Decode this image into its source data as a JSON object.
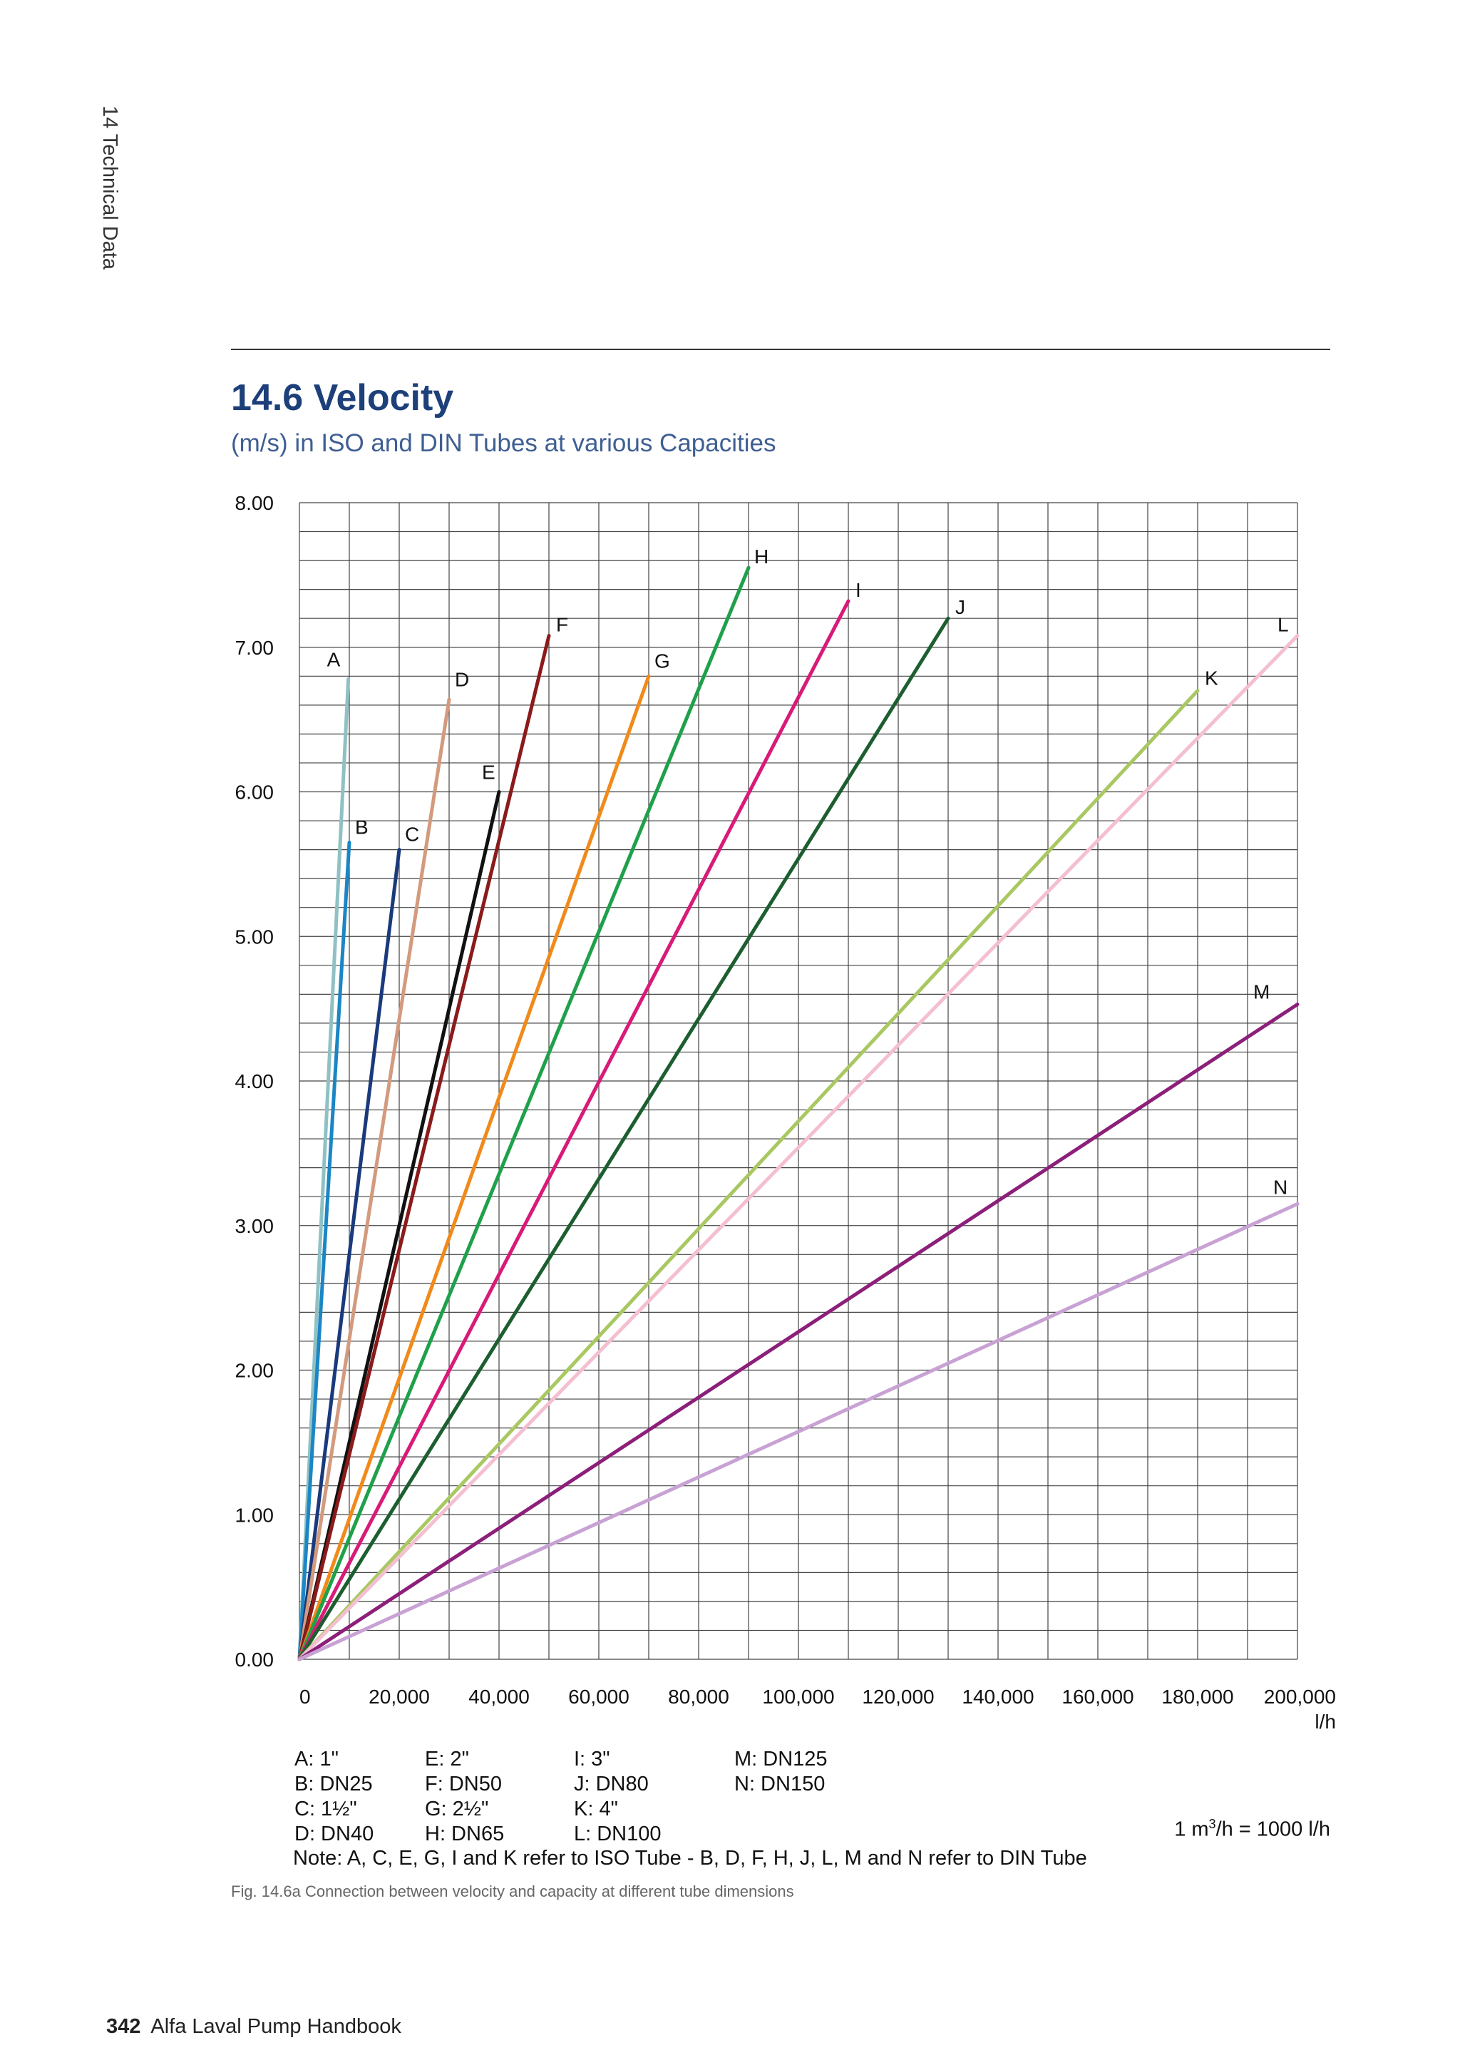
{
  "page": {
    "section_tab": "14 Technical Data",
    "title": "14.6 Velocity",
    "subtitle": "(m/s) in ISO and DIN Tubes at various Capacities",
    "legend_columns": [
      [
        "A: 1\"",
        "B: DN25",
        "C: 1½\"",
        "D: DN40"
      ],
      [
        "E: 2\"",
        "F: DN50",
        "G: 2½\"",
        "H: DN65"
      ],
      [
        "I: 3\"",
        "J: DN80",
        "K: 4\"",
        "L: DN100"
      ],
      [
        "M: DN125",
        "N: DN150"
      ]
    ],
    "conversion_prefix": "1 m",
    "conversion_sup": "3",
    "conversion_suffix": "/h = 1000 l/h",
    "note": "Note: A, C, E, G, I and K refer to ISO Tube - B, D, F, H, J, L, M and N refer to DIN Tube",
    "caption": "Fig. 14.6a Connection between velocity and capacity at different tube dimensions",
    "page_number": "342",
    "book_title": "Alfa Laval Pump Handbook"
  },
  "chart_data": {
    "type": "line",
    "title": "",
    "xlabel": "l/h",
    "ylabel": "",
    "xlim": [
      0,
      200000
    ],
    "ylim": [
      0,
      8
    ],
    "grid": true,
    "x_ticks": [
      0,
      20000,
      40000,
      60000,
      80000,
      100000,
      120000,
      140000,
      160000,
      180000,
      200000
    ],
    "x_tick_labels": [
      "0",
      "20,000",
      "40,000",
      "60,000",
      "80,000",
      "100,000",
      "120,000",
      "140,000",
      "160,000",
      "180,000",
      "200,000"
    ],
    "y_ticks": [
      0,
      1,
      2,
      3,
      4,
      5,
      6,
      7,
      8
    ],
    "y_tick_labels": [
      "0.00",
      "1.00",
      "2.00",
      "3.00",
      "4.00",
      "5.00",
      "6.00",
      "7.00",
      "8.00"
    ],
    "series": [
      {
        "name": "A",
        "color": "#8fc1c4",
        "points": [
          [
            0,
            0
          ],
          [
            9800,
            6.78
          ]
        ]
      },
      {
        "name": "B",
        "color": "#1b86c4",
        "points": [
          [
            0,
            0
          ],
          [
            10000,
            5.65
          ]
        ]
      },
      {
        "name": "C",
        "color": "#1a3a7c",
        "points": [
          [
            0,
            0
          ],
          [
            20000,
            5.6
          ]
        ]
      },
      {
        "name": "D",
        "color": "#d39a7e",
        "points": [
          [
            0,
            0
          ],
          [
            30000,
            6.64
          ]
        ]
      },
      {
        "name": "E",
        "color": "#111111",
        "points": [
          [
            0,
            0
          ],
          [
            40000,
            6.0
          ]
        ]
      },
      {
        "name": "F",
        "color": "#8b1a1a",
        "points": [
          [
            0,
            0
          ],
          [
            50000,
            7.08
          ]
        ]
      },
      {
        "name": "G",
        "color": "#f08a1a",
        "points": [
          [
            0,
            0
          ],
          [
            70000,
            6.8
          ]
        ]
      },
      {
        "name": "H",
        "color": "#1fa04a",
        "points": [
          [
            0,
            0
          ],
          [
            90000,
            7.55
          ]
        ]
      },
      {
        "name": "I",
        "color": "#d81a78",
        "points": [
          [
            0,
            0
          ],
          [
            110000,
            7.32
          ]
        ]
      },
      {
        "name": "J",
        "color": "#1d5e2f",
        "points": [
          [
            0,
            0
          ],
          [
            130000,
            7.2
          ]
        ]
      },
      {
        "name": "K",
        "color": "#a9c862",
        "points": [
          [
            0,
            0
          ],
          [
            180000,
            6.7
          ]
        ]
      },
      {
        "name": "L",
        "color": "#f4bfd0",
        "points": [
          [
            0,
            0
          ],
          [
            200000,
            7.08
          ]
        ]
      },
      {
        "name": "M",
        "color": "#8c1f7a",
        "points": [
          [
            0,
            0
          ],
          [
            200000,
            4.53
          ]
        ]
      },
      {
        "name": "N",
        "color": "#c8a2d4",
        "points": [
          [
            0,
            0
          ],
          [
            200000,
            3.15
          ]
        ]
      }
    ]
  }
}
